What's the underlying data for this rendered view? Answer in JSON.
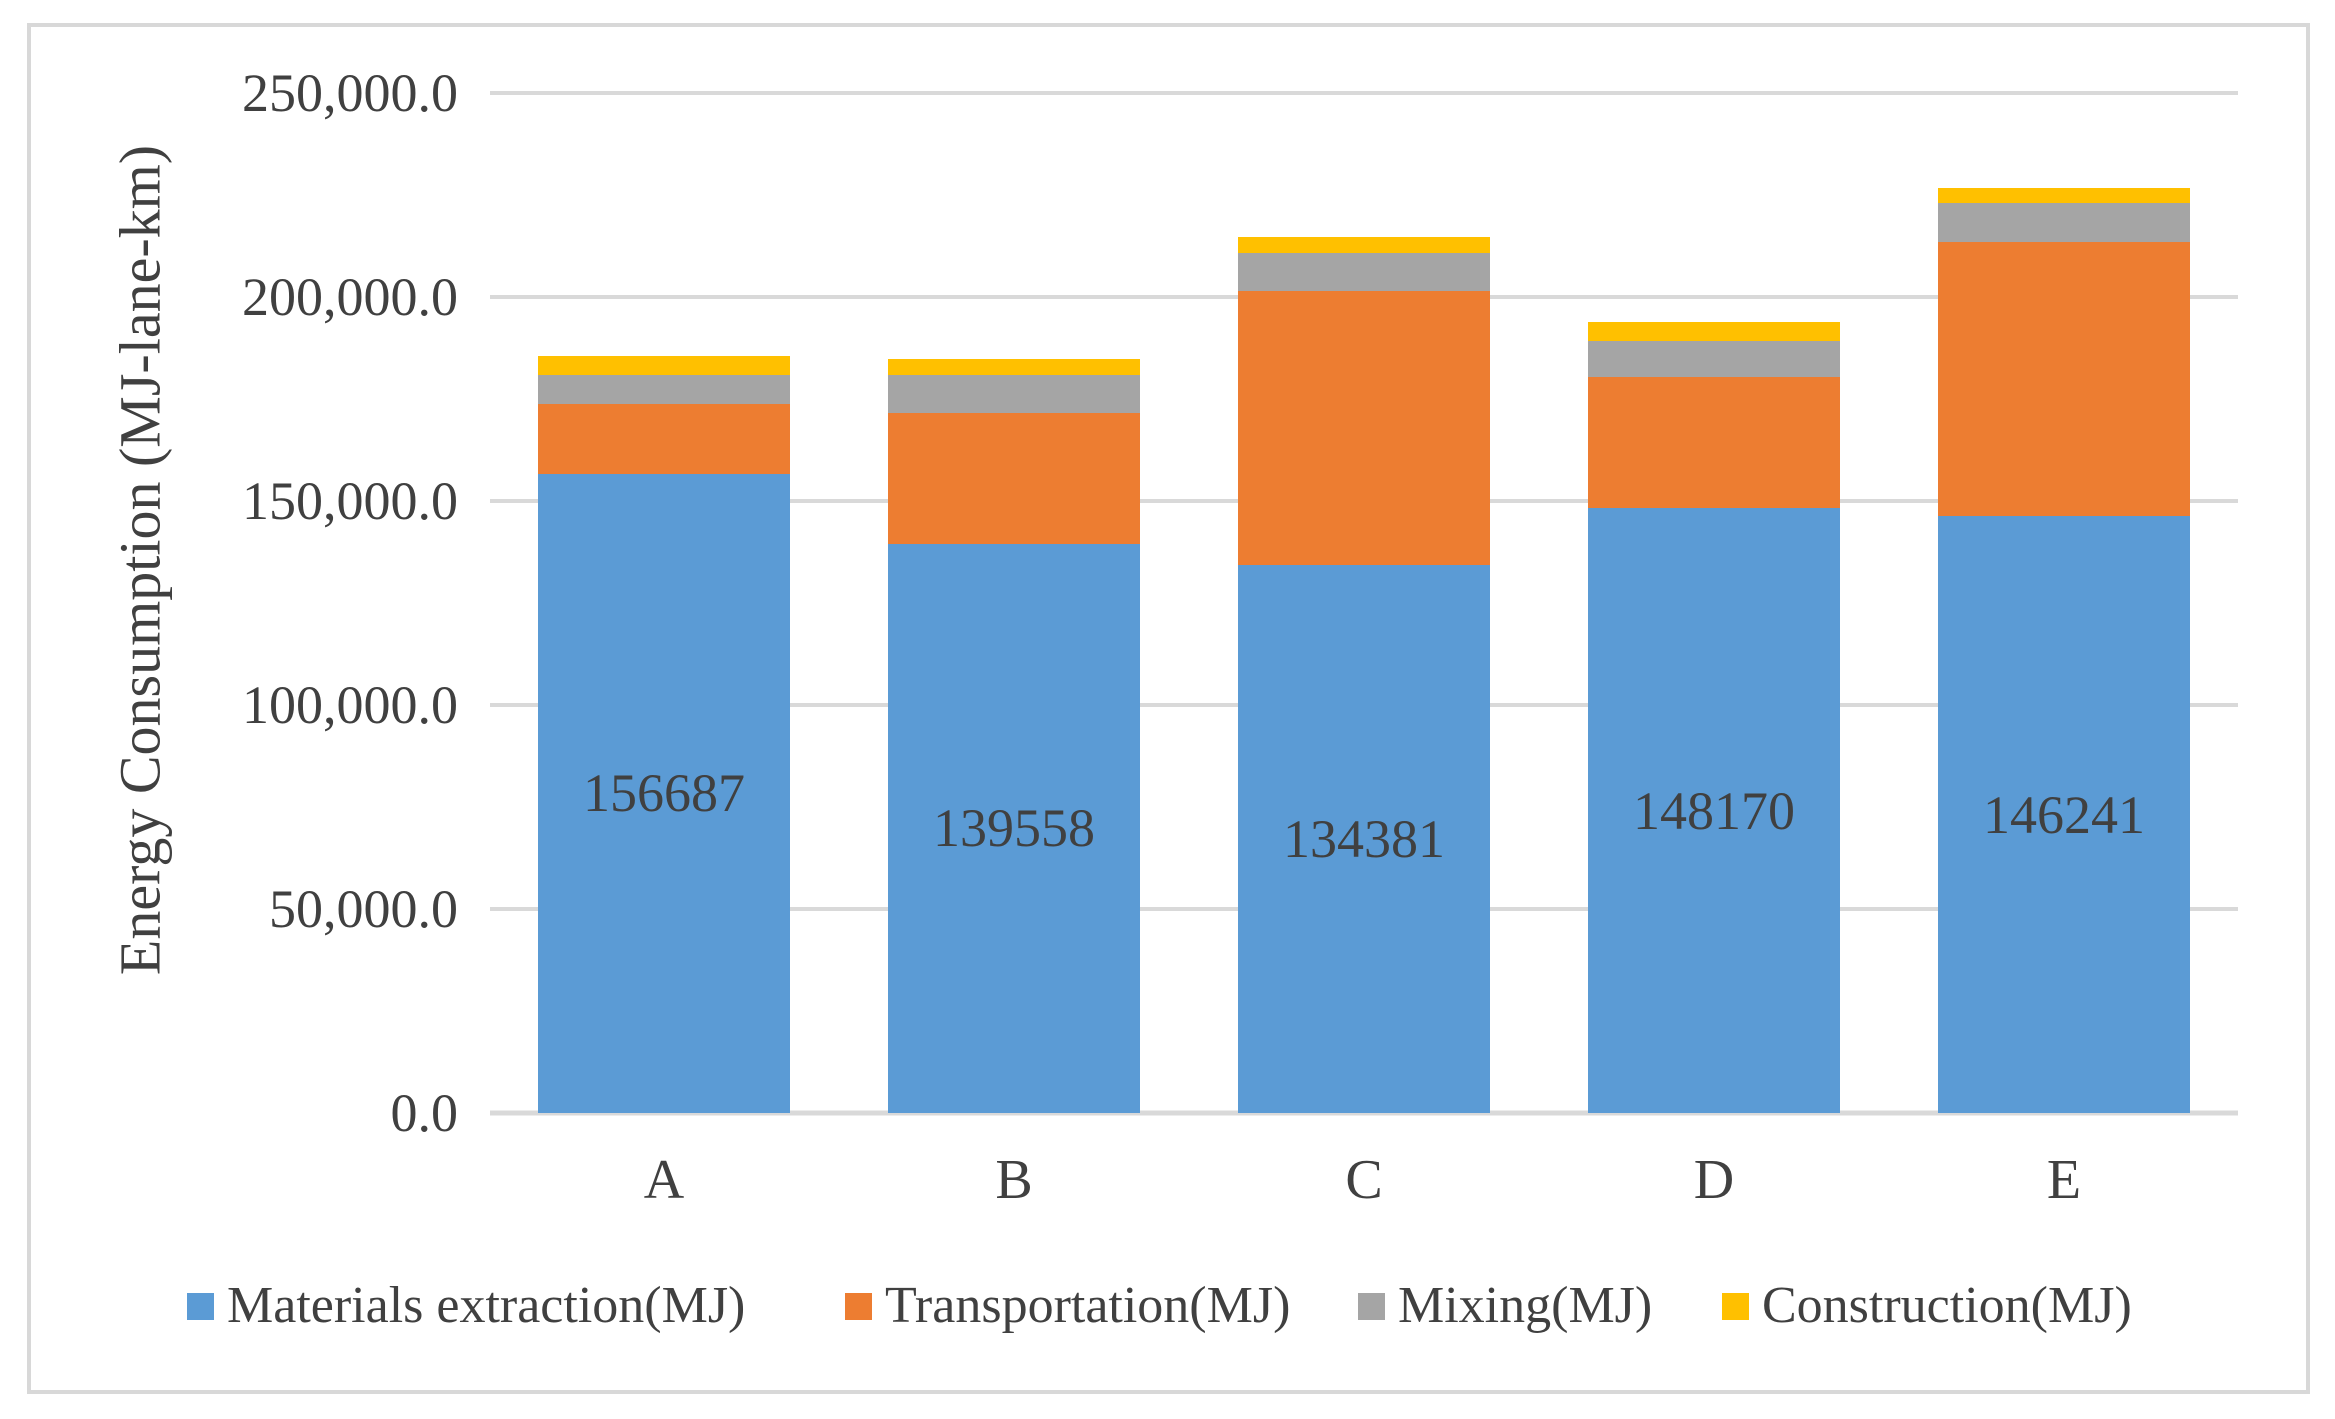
{
  "figure": {
    "background": "#ffffff",
    "border_color": "#d8d8d8"
  },
  "colors": {
    "text": "#404040",
    "gridline": "#d9d9d9",
    "axis_line": "#d9d9d9"
  },
  "chart_data": {
    "type": "bar",
    "stacked": true,
    "title": "",
    "xlabel": "",
    "ylabel": "Energy Consumption (MJ-lane-km)",
    "categories": [
      "A",
      "B",
      "C",
      "D",
      "E"
    ],
    "series": [
      {
        "name": "Materials extraction(MJ)",
        "color": "#5b9bd5",
        "values": [
          156687,
          139558,
          134381,
          148170,
          146241
        ]
      },
      {
        "name": "Transportation(MJ)",
        "color": "#ed7d31",
        "values": [
          17100,
          32100,
          67100,
          32300,
          67200
        ]
      },
      {
        "name": "Mixing(MJ)",
        "color": "#a5a5a5",
        "values": [
          7200,
          9300,
          9400,
          8800,
          9500
        ]
      },
      {
        "name": "Construction(MJ)",
        "color": "#ffc000",
        "values": [
          4600,
          3800,
          3800,
          4700,
          3800
        ]
      }
    ],
    "stack_totals_approx": [
      185587,
      184758,
      214681,
      193970,
      226741
    ],
    "data_labels": {
      "on_series": "Materials extraction(MJ)",
      "values": [
        "156687",
        "139558",
        "134381",
        "148170",
        "146241"
      ]
    },
    "y_ticks": [
      "0.0",
      "50,000.0",
      "100,000.0",
      "150,000.0",
      "200,000.0",
      "250,000.0"
    ],
    "ylim": [
      0,
      250000
    ],
    "grid": true,
    "legend_position": "bottom"
  }
}
